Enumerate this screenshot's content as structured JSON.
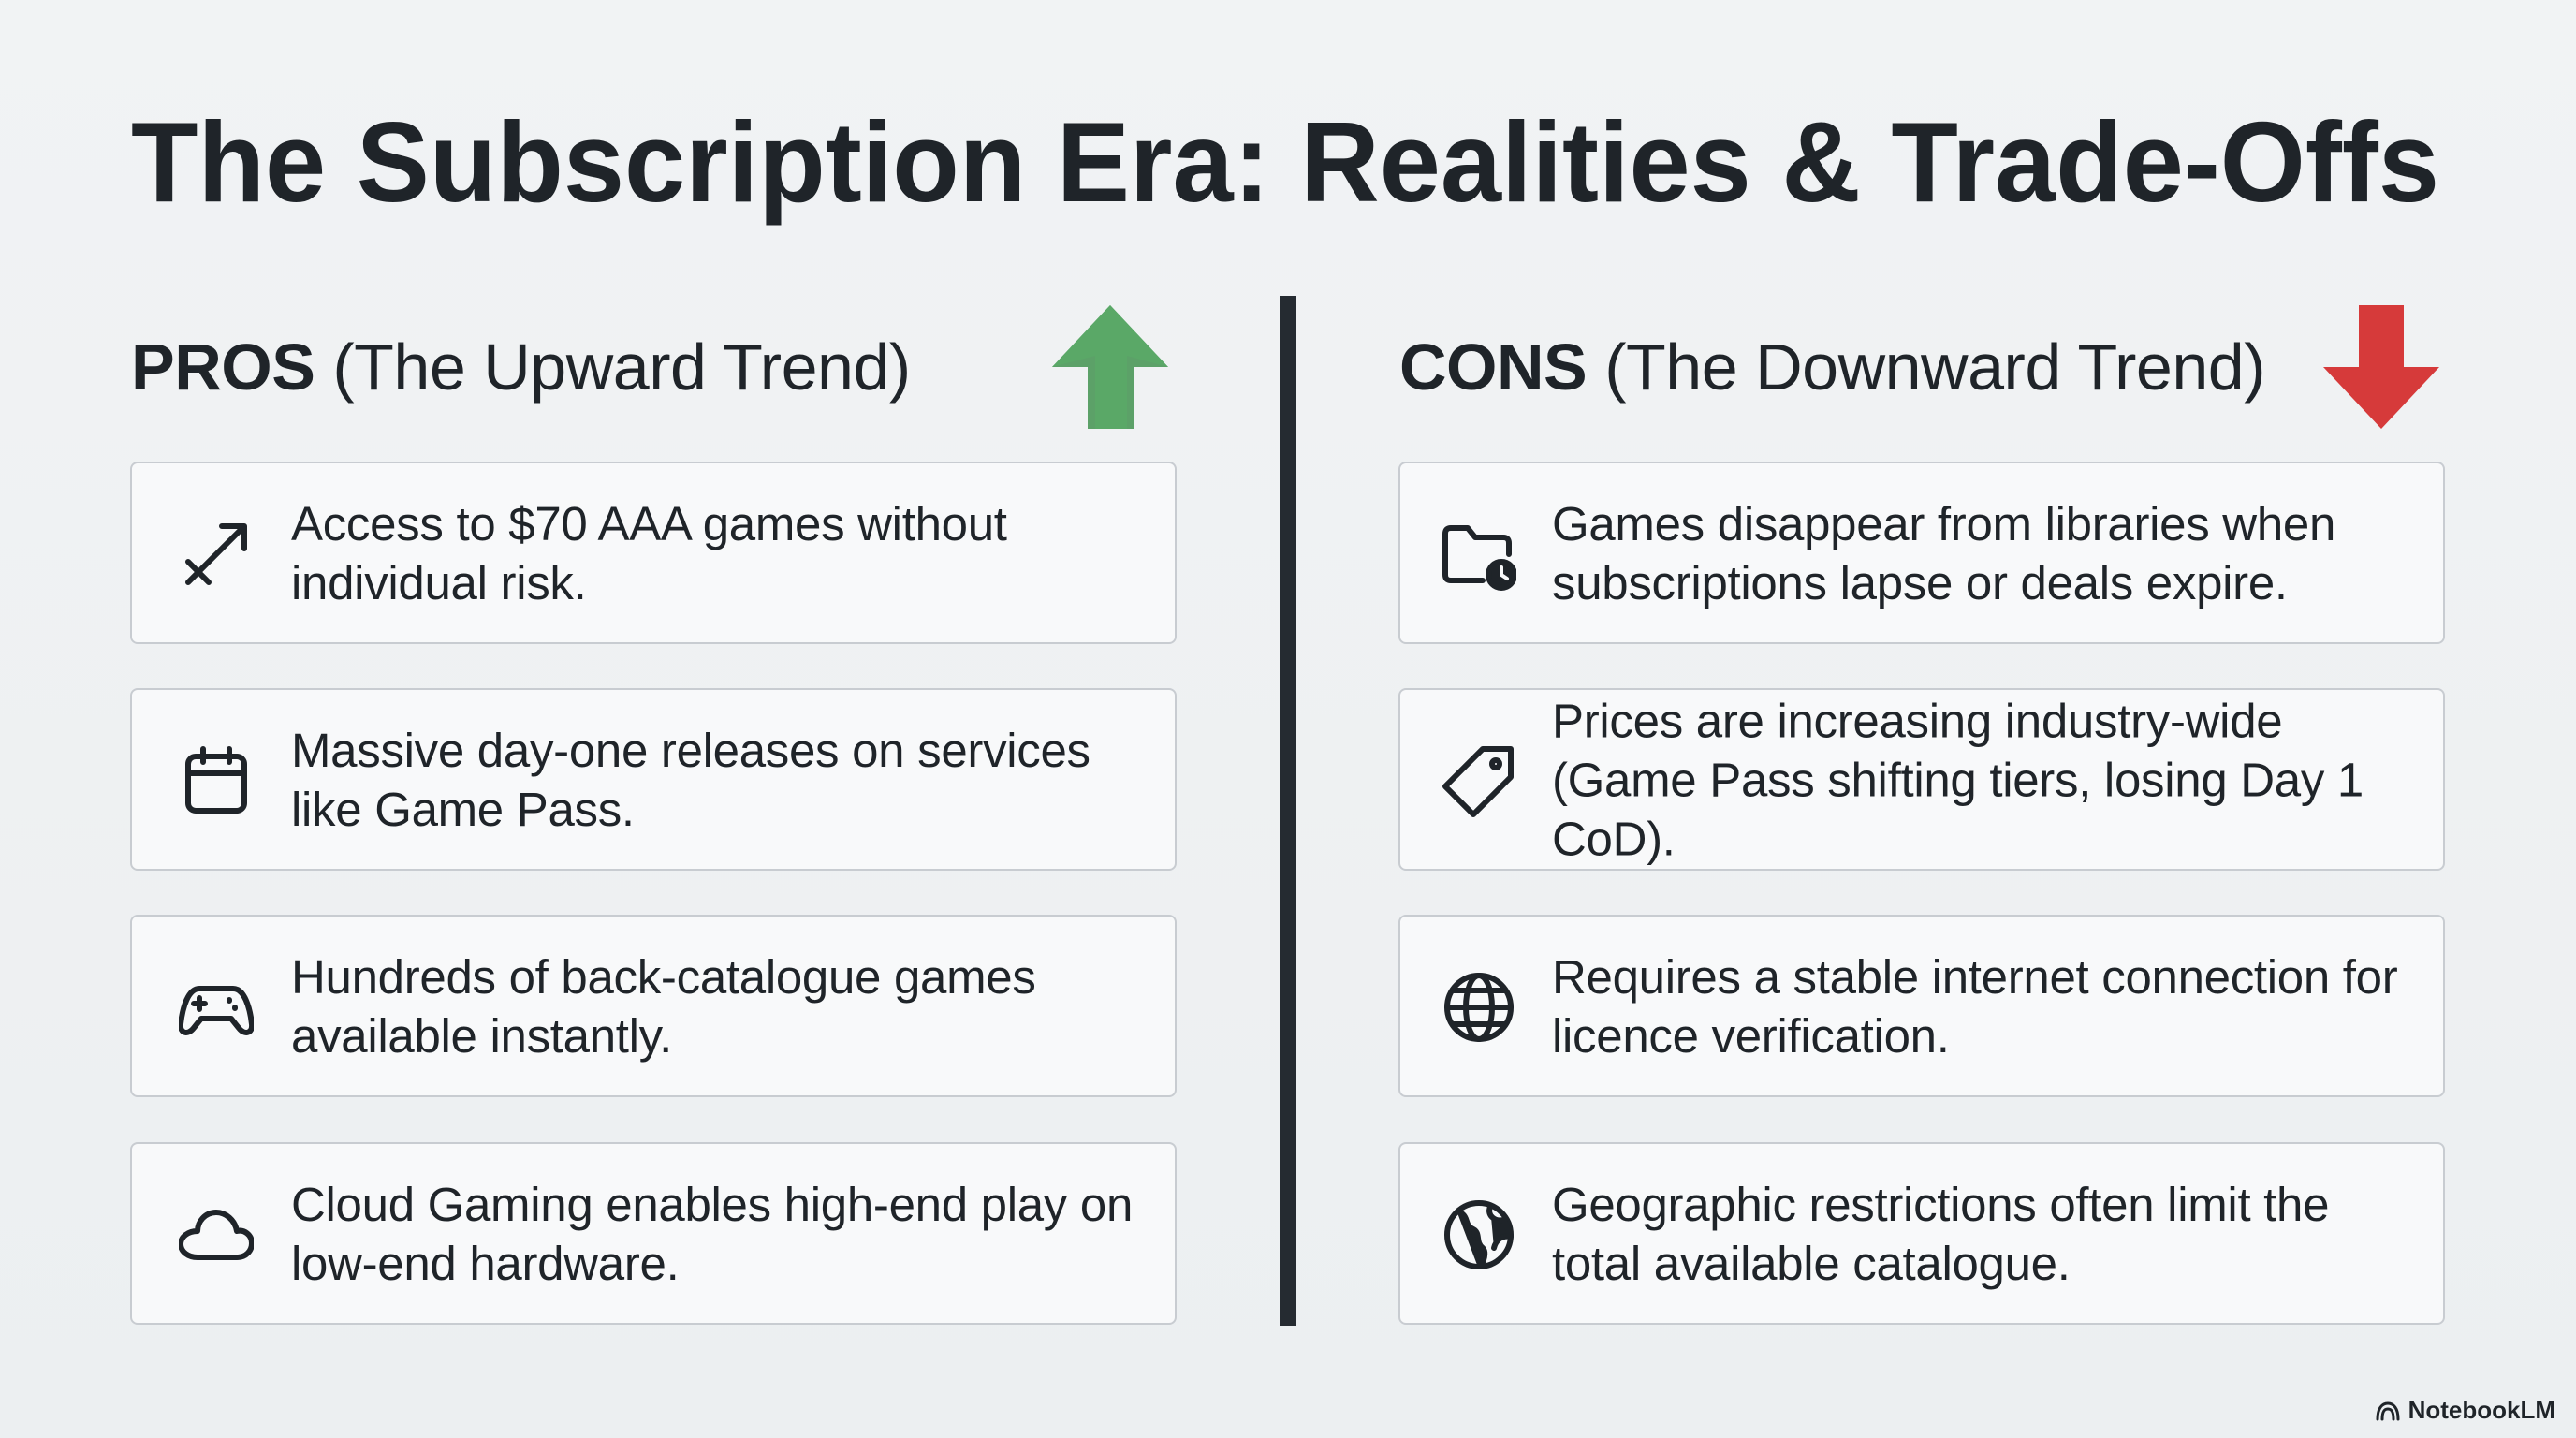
{
  "title": "The Subscription Era: Realities & Trade-Offs",
  "pros": {
    "label": "PROS",
    "subtitle": "(The Upward Trend)",
    "items": [
      "Access to $70 AAA games without individual risk.",
      "Massive day-one releases on services like Game Pass.",
      "Hundreds of back-catalogue games available instantly.",
      "Cloud Gaming enables high-end play on low-end hardware."
    ]
  },
  "cons": {
    "label": "CONS",
    "subtitle": "(The Downward Trend)",
    "items": [
      "Games disappear from libraries when subscriptions lapse or deals expire.",
      "Prices are increasing industry-wide (Game Pass shifting tiers, losing Day 1 CoD).",
      "Requires a stable internet connection for licence verification.",
      "Geographic restrictions often limit the total available catalogue."
    ]
  },
  "footer": "NotebookLM"
}
